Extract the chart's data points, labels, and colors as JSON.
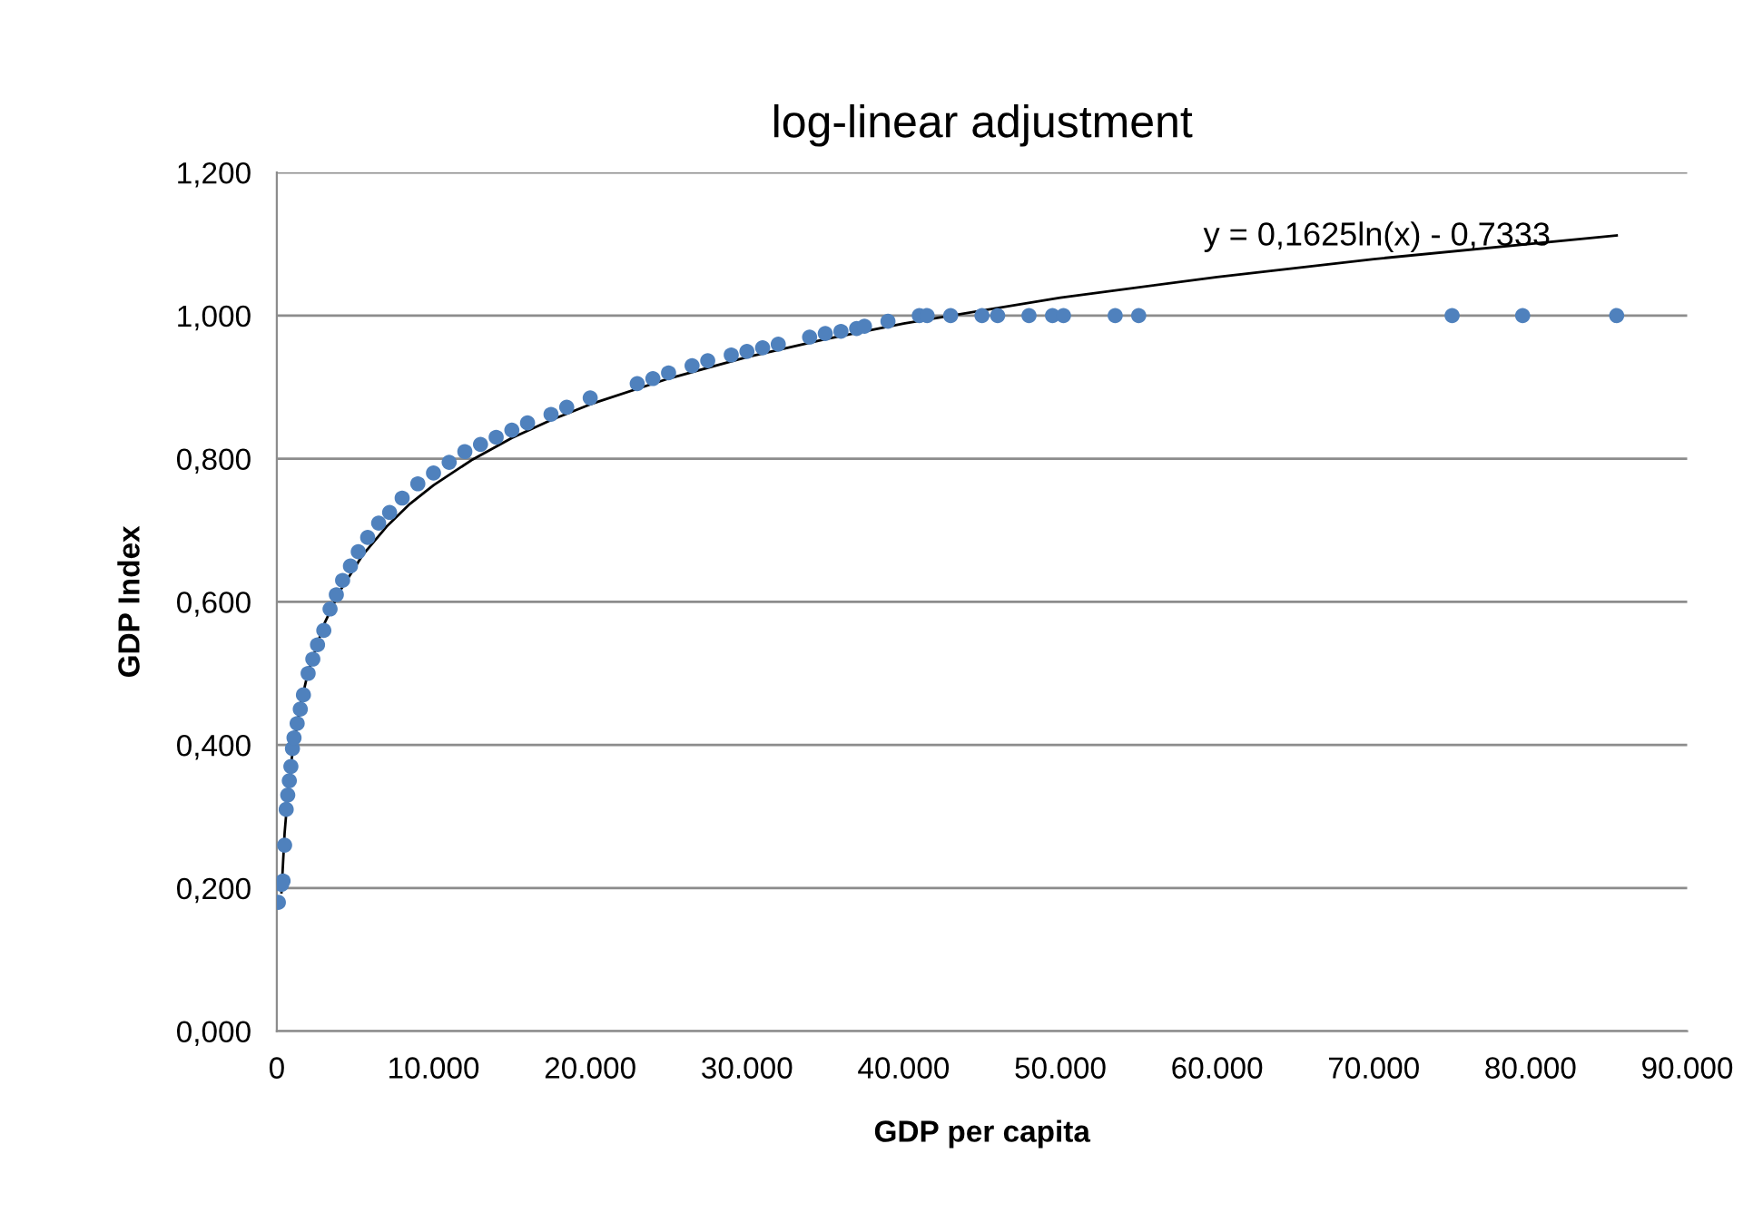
{
  "chart_data": {
    "type": "scatter",
    "title": "log-linear adjustment",
    "xlabel": "GDP per capita",
    "ylabel": "GDP Index",
    "xlim": [
      0,
      90000
    ],
    "xticks": [
      0,
      {
        "value": 10000,
        "label": "10.000"
      },
      {
        "value": 20000,
        "label": "20.000"
      },
      {
        "value": 30000,
        "label": "30.000"
      },
      {
        "value": 40000,
        "label": "40.000"
      },
      {
        "value": 50000,
        "label": "50.000"
      },
      {
        "value": 60000,
        "label": "60.000"
      },
      {
        "value": 70000,
        "label": "70.000"
      },
      {
        "value": 80000,
        "label": "80.000"
      },
      {
        "value": 90000,
        "label": "90.000"
      }
    ],
    "ylim": [
      0,
      1.2
    ],
    "yticks": [
      {
        "value": 0,
        "label": "0,000"
      },
      {
        "value": 0.2,
        "label": "0,200"
      },
      {
        "value": 0.4,
        "label": "0,400"
      },
      {
        "value": 0.6,
        "label": "0,600"
      },
      {
        "value": 0.8,
        "label": "0,800"
      },
      {
        "value": 1.0,
        "label": "1,000"
      },
      {
        "value": 1.2,
        "label": "1,200"
      }
    ],
    "grid": "y",
    "legend": false,
    "annotations": [
      "y = 0,1625ln(x) - 0,7333"
    ],
    "series": [
      {
        "color": "#4f81bd",
        "marker": "circle",
        "x": [
          100,
          300,
          400,
          500,
          600,
          700,
          800,
          900,
          1000,
          1100,
          1300,
          1500,
          1700,
          2000,
          2300,
          2600,
          3000,
          3400,
          3800,
          4200,
          4700,
          5200,
          5800,
          6500,
          7200,
          8000,
          9000,
          10000,
          11000,
          12000,
          13000,
          14000,
          15000,
          16000,
          17500,
          18500,
          20000,
          23000,
          24000,
          25000,
          26500,
          27500,
          29000,
          30000,
          31000,
          32000,
          34000,
          35000,
          36000,
          37000,
          37500,
          39000,
          41000,
          41500,
          43000,
          45000,
          46000,
          48000,
          49500,
          50200,
          53500,
          55000,
          75000,
          79500,
          85500
        ],
        "values": [
          0.18,
          0.205,
          0.21,
          0.26,
          0.31,
          0.33,
          0.35,
          0.37,
          0.395,
          0.41,
          0.43,
          0.45,
          0.47,
          0.5,
          0.52,
          0.54,
          0.56,
          0.59,
          0.61,
          0.63,
          0.65,
          0.67,
          0.69,
          0.71,
          0.725,
          0.745,
          0.765,
          0.78,
          0.795,
          0.81,
          0.82,
          0.83,
          0.84,
          0.85,
          0.862,
          0.872,
          0.885,
          0.905,
          0.912,
          0.92,
          0.93,
          0.937,
          0.945,
          0.95,
          0.955,
          0.96,
          0.97,
          0.975,
          0.978,
          0.982,
          0.985,
          0.992,
          1.0,
          1.0,
          1.0,
          1.0,
          1.0,
          1.0,
          1.0,
          1.0,
          1.0,
          1.0,
          1.0,
          1.0,
          1.0
        ]
      },
      {
        "type": "line",
        "color": "#000000",
        "marker": "none",
        "line_style": "solid",
        "x": [
          300,
          500,
          750,
          1000,
          1500,
          2000,
          3000,
          4000,
          5500,
          7000,
          8500,
          10000,
          12500,
          15000,
          17500,
          20000,
          25000,
          30000,
          35000,
          40000,
          50000,
          60000,
          70000,
          85500
        ],
        "values": [
          0.194,
          0.277,
          0.343,
          0.389,
          0.455,
          0.502,
          0.568,
          0.614,
          0.666,
          0.705,
          0.737,
          0.763,
          0.799,
          0.829,
          0.854,
          0.876,
          0.912,
          0.942,
          0.967,
          0.989,
          1.025,
          1.054,
          1.079,
          1.112
        ]
      }
    ]
  }
}
